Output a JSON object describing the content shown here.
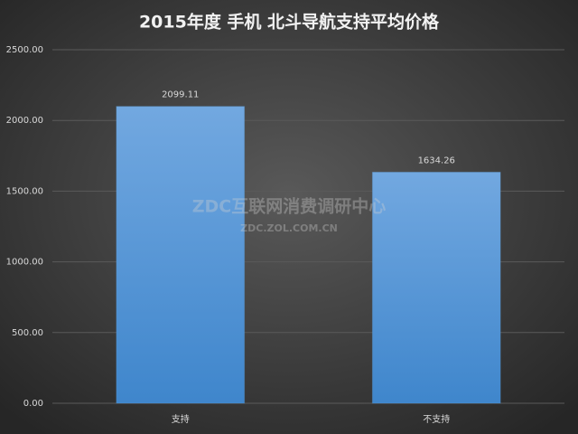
{
  "chart_data": {
    "type": "bar",
    "title": "2015年度 手机 北斗导航支持平均价格",
    "categories": [
      "支持",
      "不支持"
    ],
    "values": [
      2099.11,
      1634.26
    ],
    "color": "#5b9bd5",
    "ylim": [
      0,
      2500
    ],
    "yticks": [
      {
        "value": 0,
        "label": "0.00"
      },
      {
        "value": 500,
        "label": "500.00"
      },
      {
        "value": 1000,
        "label": "1000.00"
      },
      {
        "value": 1500,
        "label": "1500.00"
      },
      {
        "value": 2000,
        "label": "2000.00"
      },
      {
        "value": 2500,
        "label": "2500.00"
      }
    ],
    "grid": true,
    "watermark": [
      "ZDC互联网消费调研中心",
      "ZDC.ZOL.COM.CN"
    ]
  }
}
